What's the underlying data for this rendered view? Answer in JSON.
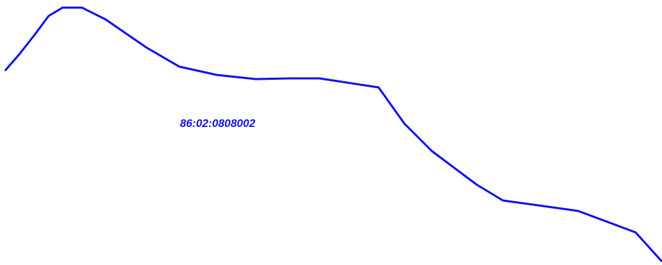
{
  "map": {
    "parcel_number": "86:02:0808002",
    "boundary_color": "#1010ee",
    "label_color": "#1010ee",
    "background_color": "#ffffff"
  }
}
